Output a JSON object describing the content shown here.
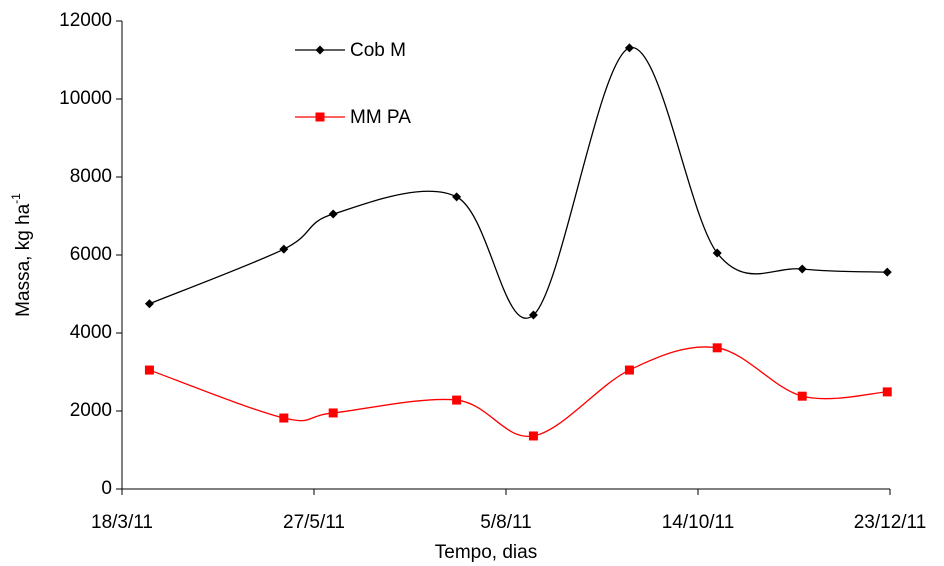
{
  "chart_data": {
    "type": "line",
    "x_label": "Tempo, dias",
    "y_label": "Massa, kg ha",
    "y_label_superscript": "-1",
    "x": [
      "2011-03-28",
      "2011-05-16",
      "2011-06-03",
      "2011-07-18",
      "2011-08-15",
      "2011-09-19",
      "2011-10-21",
      "2011-11-21",
      "2011-12-22"
    ],
    "series": [
      {
        "name": "Cob M",
        "color": "#000000",
        "marker": "diamond",
        "values": [
          4750,
          6150,
          7050,
          7490,
          4460,
          11310,
          6050,
          5640,
          5560
        ]
      },
      {
        "name": "MM PA",
        "color": "#ff0000",
        "marker": "square",
        "values": [
          3050,
          1820,
          1950,
          2280,
          1360,
          3050,
          3620,
          2380,
          2490
        ]
      }
    ],
    "xlim": [
      "2011-03-18",
      "2011-12-23"
    ],
    "xticks": [
      {
        "value": "2011-03-18",
        "label": "18/3/11"
      },
      {
        "value": "2011-05-27",
        "label": "27/5/11"
      },
      {
        "value": "2011-08-05",
        "label": "5/8/11"
      },
      {
        "value": "2011-10-14",
        "label": "14/10/11"
      },
      {
        "value": "2011-12-23",
        "label": "23/12/11"
      }
    ],
    "ylim": [
      0,
      12000
    ],
    "yticks": [
      0,
      2000,
      4000,
      6000,
      8000,
      10000,
      12000
    ],
    "smooth": true,
    "grid": false,
    "legend": "upper left"
  }
}
